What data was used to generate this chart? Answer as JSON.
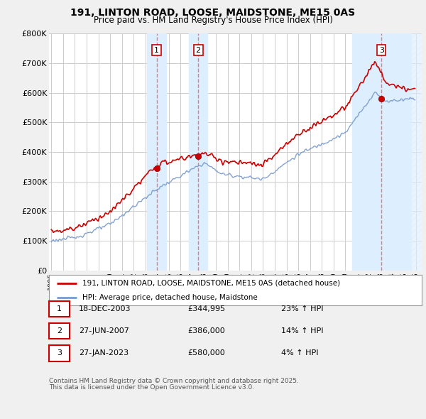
{
  "title": "191, LINTON ROAD, LOOSE, MAIDSTONE, ME15 0AS",
  "subtitle": "Price paid vs. HM Land Registry's House Price Index (HPI)",
  "background_color": "#f0f0f0",
  "plot_bg_color": "#ffffff",
  "grid_color": "#cccccc",
  "ylim": [
    0,
    800000
  ],
  "yticks": [
    0,
    100000,
    200000,
    300000,
    400000,
    500000,
    600000,
    700000,
    800000
  ],
  "ytick_labels": [
    "£0",
    "£100K",
    "£200K",
    "£300K",
    "£400K",
    "£500K",
    "£600K",
    "£700K",
    "£800K"
  ],
  "xlim_start": 1994.8,
  "xlim_end": 2026.5,
  "purchase_dates": [
    2003.96,
    2007.49,
    2023.07
  ],
  "purchase_prices": [
    344995,
    386000,
    580000
  ],
  "purchase_labels": [
    "1",
    "2",
    "3"
  ],
  "line_color_property": "#cc0000",
  "line_color_hpi": "#7799cc",
  "shade_color": "#ddeeff",
  "dashed_line_color": "#ff6666",
  "footnote_line1": "Contains HM Land Registry data © Crown copyright and database right 2025.",
  "footnote_line2": "This data is licensed under the Open Government Licence v3.0.",
  "legend_line1": "191, LINTON ROAD, LOOSE, MAIDSTONE, ME15 0AS (detached house)",
  "legend_line2": "HPI: Average price, detached house, Maidstone",
  "table_rows": [
    {
      "label": "1",
      "date": "18-DEC-2003",
      "price": "£344,995",
      "hpi": "23% ↑ HPI"
    },
    {
      "label": "2",
      "date": "27-JUN-2007",
      "price": "£386,000",
      "hpi": "14% ↑ HPI"
    },
    {
      "label": "3",
      "date": "27-JAN-2023",
      "price": "£580,000",
      "hpi": "4% ↑ HPI"
    }
  ]
}
